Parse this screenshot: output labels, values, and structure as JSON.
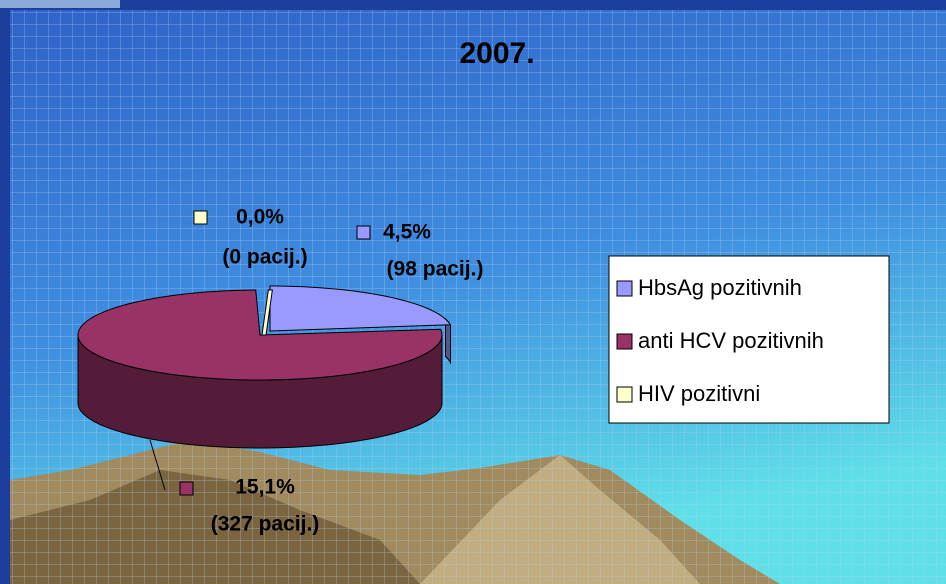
{
  "chart_data": {
    "type": "pie",
    "title": "2007.",
    "categories": [
      "HbsAg pozitivnih",
      "anti HCV pozitivnih",
      "HIV pozitivni"
    ],
    "values": [
      4.5,
      15.1,
      0.0
    ],
    "value_labels": [
      "4,5%",
      "15,1%",
      "0,0%"
    ],
    "counts": [
      98,
      327,
      0
    ],
    "count_labels": [
      "(98 pacij.)",
      "(327 pacij.)",
      "(0 pacij.)"
    ],
    "colors": [
      "#9999ff",
      "#993366",
      "#ffffcc"
    ],
    "legend": "right"
  }
}
